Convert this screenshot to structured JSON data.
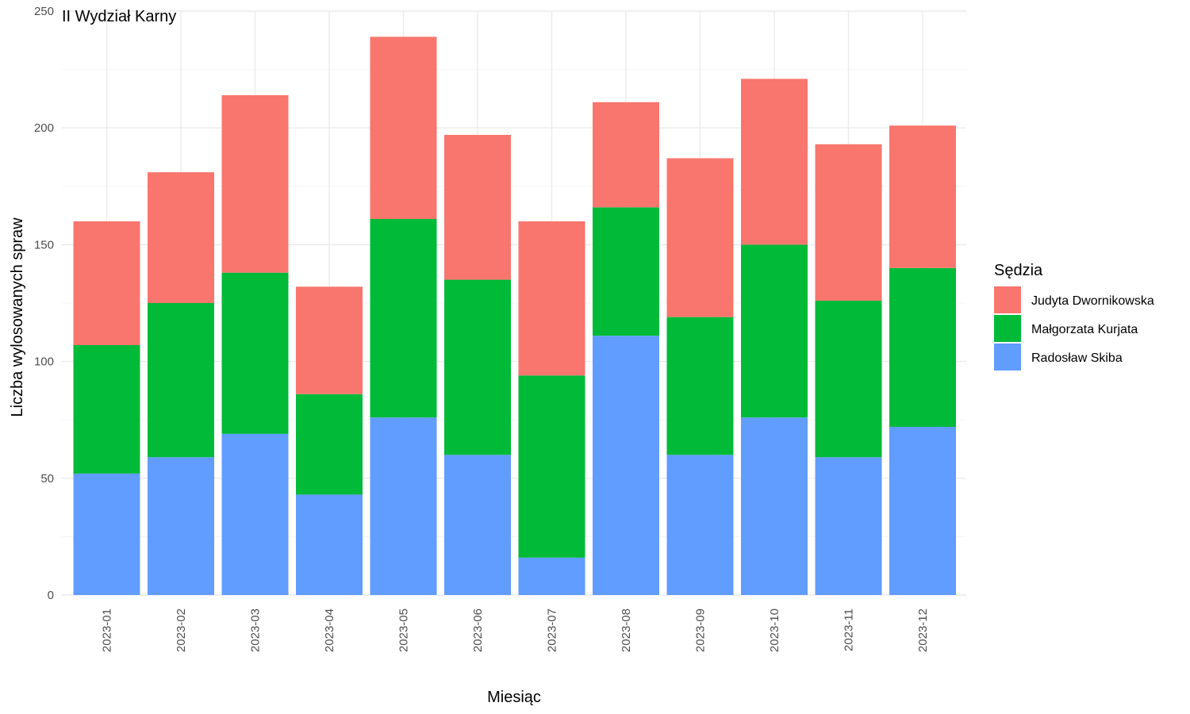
{
  "chart_data": {
    "type": "bar",
    "stacked": true,
    "title": "II Wydział Karny",
    "xlabel": "Miesiąc",
    "ylabel": "Liczba wylosowanych spraw",
    "ylim": [
      0,
      250
    ],
    "yticks": [
      0,
      50,
      100,
      150,
      200,
      250
    ],
    "grid": true,
    "legend_title": "Sędzia",
    "legend_position": "right",
    "categories": [
      "2023-01",
      "2023-02",
      "2023-03",
      "2023-04",
      "2023-05",
      "2023-06",
      "2023-07",
      "2023-08",
      "2023-09",
      "2023-10",
      "2023-11",
      "2023-12"
    ],
    "series": [
      {
        "name": "Radosław Skiba",
        "color": "#619CFF",
        "values": [
          52,
          59,
          69,
          43,
          76,
          60,
          16,
          111,
          60,
          76,
          59,
          72
        ]
      },
      {
        "name": "Małgorzata Kurjata",
        "color": "#00BA38",
        "values": [
          55,
          66,
          69,
          43,
          85,
          75,
          78,
          55,
          59,
          74,
          67,
          68
        ]
      },
      {
        "name": "Judyta Dwornikowska",
        "color": "#F8766D",
        "values": [
          53,
          56,
          76,
          46,
          78,
          62,
          66,
          45,
          68,
          71,
          67,
          61
        ]
      }
    ],
    "legend_order": [
      "Judyta Dwornikowska",
      "Małgorzata Kurjata",
      "Radosław Skiba"
    ]
  }
}
